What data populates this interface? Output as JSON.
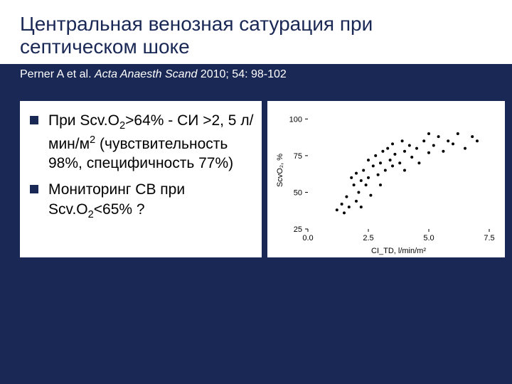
{
  "title": "Центральная венозная сатурация при септическом шоке",
  "citation": {
    "authors": "Perner A et al.",
    "journal": "Acta Anaesth Scand",
    "rest": "2010; 54: 98-102"
  },
  "bullets": [
    {
      "html": "При Scv.O<sub class='sub'>2</sub>&gt;64% - СИ &gt;2, 5 л/мин/м<sup class='sup'>2</sup> (чувствительность 98%, специфичность 77%)"
    },
    {
      "html": "Мониторинг СВ при Scv.O<sub class='sub'>2</sub>&lt;65% ?"
    }
  ],
  "chart": {
    "type": "scatter",
    "xlabel": "CI_TD, l/min/m²",
    "ylabel": "ScvO₂, %",
    "xlim": [
      0,
      7.5
    ],
    "ylim": [
      25,
      105
    ],
    "xticks": [
      0.0,
      2.5,
      5.0,
      7.5
    ],
    "yticks": [
      25,
      50,
      75,
      100
    ],
    "xtick_labels": [
      "0.0",
      "2.5",
      "5.0",
      "7.5"
    ],
    "ytick_labels": [
      "25",
      "50",
      "75",
      "100"
    ],
    "background_color": "#ffffff",
    "point_color": "#000000",
    "axis_color": "#000000",
    "label_fontsize": 11,
    "tick_fontsize": 11,
    "marker_size": 2.0,
    "points": [
      [
        1.2,
        38
      ],
      [
        1.4,
        42
      ],
      [
        1.5,
        36
      ],
      [
        1.6,
        47
      ],
      [
        1.7,
        40
      ],
      [
        1.8,
        60
      ],
      [
        1.9,
        55
      ],
      [
        2.0,
        44
      ],
      [
        2.0,
        63
      ],
      [
        2.1,
        50
      ],
      [
        2.2,
        40
      ],
      [
        2.2,
        58
      ],
      [
        2.3,
        65
      ],
      [
        2.4,
        55
      ],
      [
        2.5,
        60
      ],
      [
        2.5,
        72
      ],
      [
        2.6,
        48
      ],
      [
        2.7,
        68
      ],
      [
        2.8,
        75
      ],
      [
        2.9,
        62
      ],
      [
        3.0,
        70
      ],
      [
        3.0,
        55
      ],
      [
        3.1,
        78
      ],
      [
        3.2,
        65
      ],
      [
        3.3,
        80
      ],
      [
        3.4,
        72
      ],
      [
        3.5,
        68
      ],
      [
        3.5,
        83
      ],
      [
        3.6,
        76
      ],
      [
        3.8,
        70
      ],
      [
        3.9,
        85
      ],
      [
        4.0,
        78
      ],
      [
        4.0,
        65
      ],
      [
        4.2,
        82
      ],
      [
        4.3,
        74
      ],
      [
        4.5,
        80
      ],
      [
        4.6,
        70
      ],
      [
        4.8,
        85
      ],
      [
        5.0,
        77
      ],
      [
        5.0,
        90
      ],
      [
        5.2,
        82
      ],
      [
        5.4,
        88
      ],
      [
        5.6,
        78
      ],
      [
        5.8,
        85
      ],
      [
        6.0,
        83
      ],
      [
        6.2,
        90
      ],
      [
        6.5,
        80
      ],
      [
        6.8,
        88
      ],
      [
        7.0,
        85
      ]
    ]
  }
}
